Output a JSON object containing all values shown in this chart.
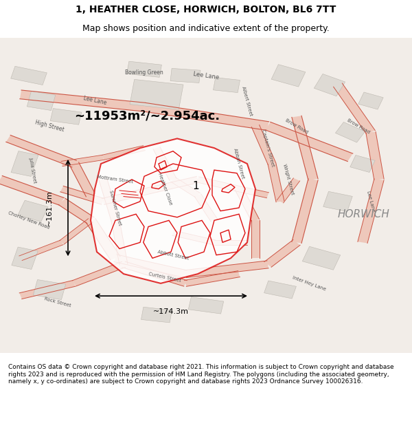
{
  "title_line1": "1, HEATHER CLOSE, HORWICH, BOLTON, BL6 7TT",
  "title_line2": "Map shows position and indicative extent of the property.",
  "area_text": "~11953m²/~2.954ac.",
  "width_label": "~174.3m",
  "height_label": "~161.3m",
  "location_label": "1",
  "horwich_label": "HORWICH",
  "footer_text": "Contains OS data © Crown copyright and database right 2021. This information is subject to Crown copyright and database rights 2023 and is reproduced with the permission of HM Land Registry. The polygons (including the associated geometry, namely x, y co-ordinates) are subject to Crown copyright and database rights 2023 Ordnance Survey 100026316.",
  "map_bg_color": "#f0ede8",
  "map_bg_color2": "#e8e4de",
  "road_color_light": "#e8a090",
  "road_color_dark": "#cc4433",
  "plot_border_color": "#dd2222",
  "plot_fill_color": "#ffffff",
  "title_bg_color": "#ffffff",
  "footer_bg_color": "#ffffff",
  "fig_width": 6.0,
  "fig_height": 6.25
}
